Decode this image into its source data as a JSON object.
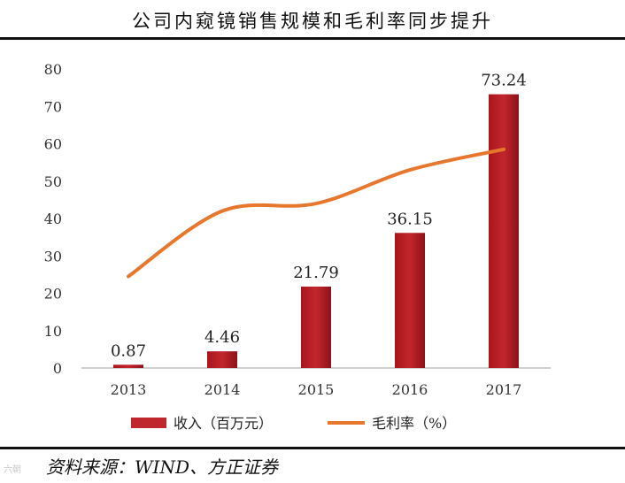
{
  "title": "公司内窥镜销售规模和毛利率同步提升",
  "source": "资料来源：WIND、方正证券",
  "watermark": "六朝",
  "colors": {
    "bar": "#c0272d",
    "line": "#e8772e",
    "axis": "#bfbfbf"
  },
  "chart_data": {
    "type": "bar",
    "categories": [
      "2013",
      "2014",
      "2015",
      "2016",
      "2017"
    ],
    "ylim": [
      0,
      80
    ],
    "yticks": [
      "0",
      "10",
      "20",
      "30",
      "40",
      "50",
      "60",
      "70",
      "80"
    ],
    "grid": false,
    "legend": "bottom",
    "series": [
      {
        "name": "收入（百万元）",
        "type": "bar",
        "values": [
          0.87,
          4.46,
          21.79,
          36.15,
          73.24
        ],
        "labels": [
          "0.87",
          "4.46",
          "21.79",
          "36.15",
          "73.24"
        ]
      },
      {
        "name": "毛利率（%）",
        "type": "line",
        "values": [
          24.5,
          42,
          44,
          53,
          58.5
        ]
      }
    ]
  }
}
